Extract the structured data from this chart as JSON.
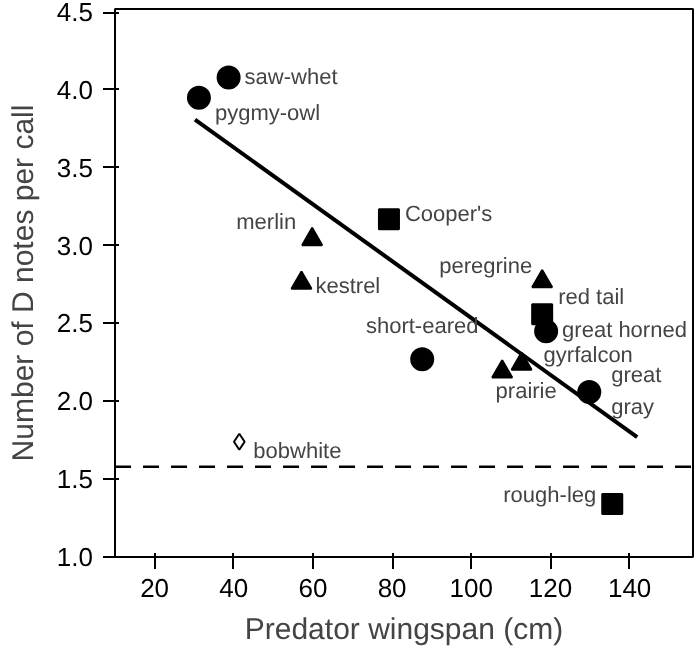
{
  "chart_data": {
    "type": "scatter",
    "xlabel": "Predator wingspan (cm)",
    "ylabel": "Number of D notes per call",
    "xlim": [
      10,
      156
    ],
    "ylim": [
      1.0,
      4.52
    ],
    "xticks": [
      20,
      40,
      60,
      80,
      100,
      120,
      140
    ],
    "yticks": [
      {
        "value": 1.0,
        "label": "1.0"
      },
      1.5,
      {
        "value": 2.0,
        "label": "2.0"
      },
      2.5,
      {
        "value": 3.0,
        "label": "3.0"
      },
      3.5,
      {
        "value": 4.0,
        "label": "4.0"
      },
      4.5
    ],
    "grid": false,
    "series": [
      {
        "marker": "circle",
        "color": "#000000",
        "x": [
          38.7,
          31.2,
          118.9,
          87.6,
          129.8
        ],
        "values": [
          4.08,
          3.95,
          2.45,
          2.27,
          2.06
        ]
      },
      {
        "marker": "square",
        "color": "#000000",
        "x": [
          79.2,
          117.9,
          135.6
        ],
        "values": [
          3.17,
          2.56,
          1.34
        ]
      },
      {
        "marker": "triangle",
        "color": "#000000",
        "x": [
          59.8,
          57.1,
          117.9,
          107.8,
          112.7
        ],
        "values": [
          3.04,
          2.76,
          2.77,
          2.19,
          2.24
        ]
      },
      {
        "marker": "diamond",
        "color": "#ffffff",
        "x": [
          41.4
        ],
        "values": [
          1.74
        ]
      },
      {
        "type": "line",
        "line_style": "solid",
        "color": "#000000",
        "x": [
          30.2,
          141.9
        ],
        "values": [
          3.81,
          1.77
        ]
      }
    ],
    "ref_lines": [
      {
        "axis": "y",
        "value": 1.58,
        "line_style": "dashed",
        "color": "#000000"
      }
    ],
    "annotations": [
      {
        "text": "saw-whet",
        "x": 38.7,
        "y": 4.08
      },
      {
        "text": "pygmy-owl",
        "x": 31.2,
        "y": 3.95
      },
      {
        "text": "merlin",
        "x": 59.8,
        "y": 3.04
      },
      {
        "text": "kestrel",
        "x": 57.1,
        "y": 2.76
      },
      {
        "text": "Cooper's",
        "x": 79.2,
        "y": 3.17
      },
      {
        "text": "peregrine",
        "x": 117.9,
        "y": 2.77
      },
      {
        "text": "red tail",
        "x": 117.9,
        "y": 2.56
      },
      {
        "text": "great horned",
        "x": 118.9,
        "y": 2.45
      },
      {
        "text": "short-eared",
        "x": 87.6,
        "y": 2.27
      },
      {
        "text": "prairie",
        "x": 107.8,
        "y": 2.19
      },
      {
        "text": "gyrfalcon",
        "x": 112.7,
        "y": 2.24
      },
      {
        "text": "great\ngray",
        "x": 129.8,
        "y": 2.06
      },
      {
        "text": "bobwhite",
        "x": 41.4,
        "y": 1.74
      },
      {
        "text": "rough-leg",
        "x": 135.6,
        "y": 1.34
      }
    ]
  }
}
